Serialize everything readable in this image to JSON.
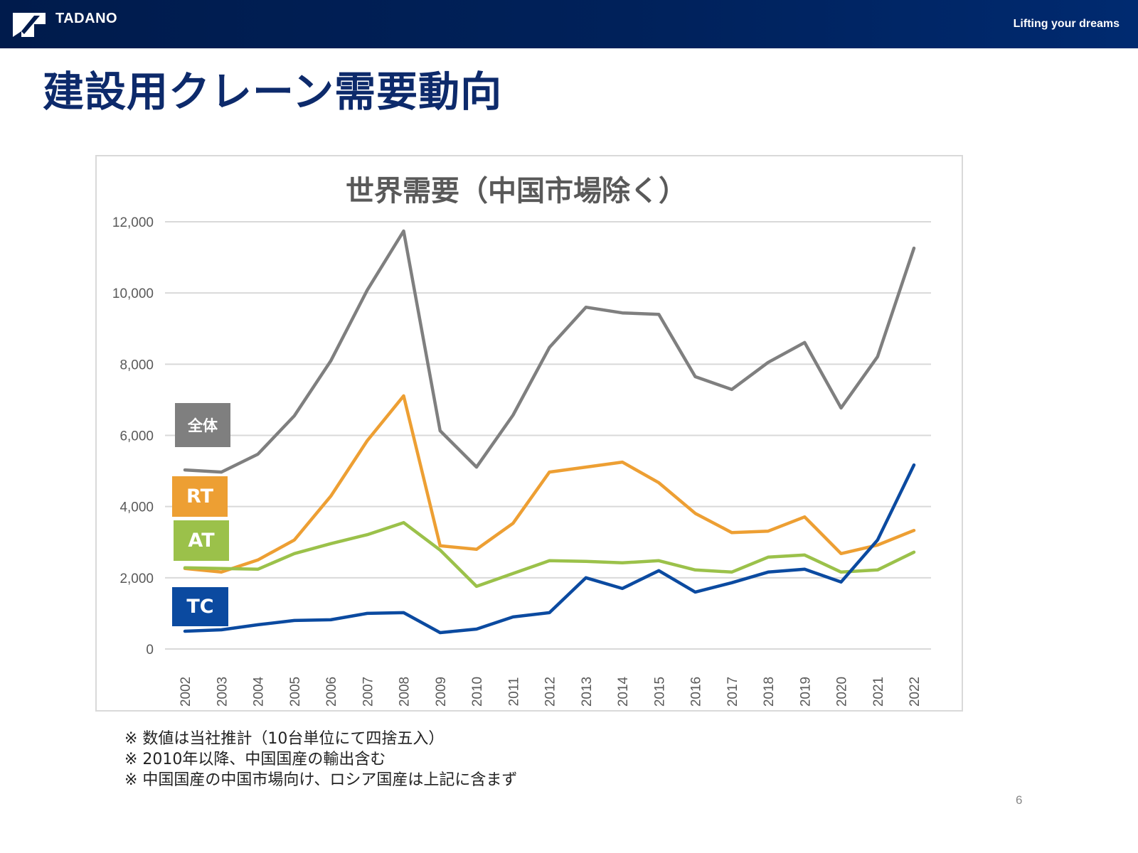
{
  "header": {
    "brand": "TADANO",
    "tagline": "Lifting your dreams",
    "logo_icon": "tadano-logo-icon"
  },
  "page": {
    "title": "建設用クレーン需要動向",
    "page_number": "6"
  },
  "legend_labels": {
    "total": "全体",
    "rt": "RT",
    "at": "AT",
    "tc": "TC"
  },
  "notes": [
    "※ 数値は当社推計（10台単位にて四捨五入）",
    "※ 2010年以降、中国国産の輸出含む",
    "※ 中国国産の中国市場向け、ロシア国産は上記に含まず"
  ],
  "chart_data": {
    "type": "line",
    "title": "世界需要（中国市場除く）",
    "xlabel": "",
    "ylabel": "",
    "x": [
      "2002",
      "2003",
      "2004",
      "2005",
      "2006",
      "2007",
      "2008",
      "2009",
      "2010",
      "2011",
      "2012",
      "2013",
      "2014",
      "2015",
      "2016",
      "2017",
      "2018",
      "2019",
      "2020",
      "2021",
      "2022"
    ],
    "ylim": [
      0,
      12000
    ],
    "yticks": [
      0,
      2000,
      4000,
      6000,
      8000,
      10000,
      12000
    ],
    "ytick_labels": [
      "0",
      "2,000",
      "4,000",
      "6,000",
      "8,000",
      "10,000",
      "12,000"
    ],
    "grid": true,
    "legend_placement": "left (boxed labels near series start)",
    "series": [
      {
        "name": "全体",
        "key": "total",
        "color": "#7f7f7f",
        "values": [
          5030,
          4970,
          5470,
          6550,
          8090,
          10080,
          11740,
          6130,
          5110,
          6570,
          8470,
          9600,
          9440,
          9400,
          7650,
          7290,
          8050,
          8610,
          6770,
          8210,
          11260
        ]
      },
      {
        "name": "RT",
        "key": "rt",
        "color": "#ed9f33",
        "values": [
          2260,
          2160,
          2500,
          3060,
          4290,
          5850,
          7110,
          2900,
          2800,
          3530,
          4970,
          5110,
          5250,
          4670,
          3810,
          3270,
          3310,
          3710,
          2680,
          2920,
          3330
        ]
      },
      {
        "name": "AT",
        "key": "at",
        "color": "#9bc14a",
        "values": [
          2280,
          2260,
          2240,
          2680,
          2960,
          3210,
          3550,
          2780,
          1760,
          2120,
          2480,
          2460,
          2420,
          2480,
          2220,
          2160,
          2580,
          2640,
          2160,
          2220,
          2720
        ]
      },
      {
        "name": "TC",
        "key": "tc",
        "color": "#0b4aa0",
        "values": [
          500,
          540,
          680,
          800,
          820,
          1000,
          1020,
          460,
          560,
          900,
          1020,
          2000,
          1700,
          2200,
          1600,
          1860,
          2160,
          2240,
          1880,
          3060,
          5170
        ]
      }
    ]
  }
}
